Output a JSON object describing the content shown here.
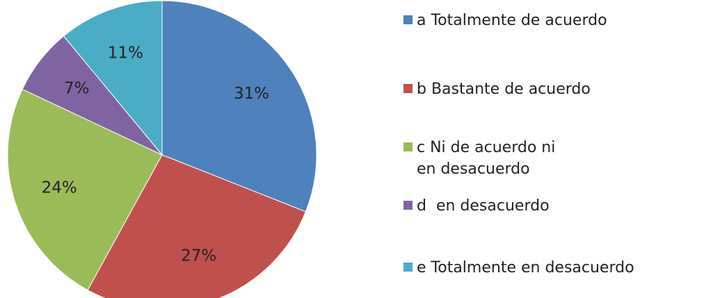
{
  "chart_data": {
    "type": "pie",
    "title": "",
    "slices": [
      {
        "label": "a Totalmente de acuerdo",
        "value": 31,
        "display": "31%",
        "color": "#4F81BD"
      },
      {
        "label": "b Bastante de acuerdo",
        "value": 27,
        "display": "27%",
        "color": "#C0504D"
      },
      {
        "label": "c Ni de acuerdo ni en desacuerdo",
        "value": 24,
        "display": "24%",
        "color": "#9BBB59"
      },
      {
        "label": "d  en desacuerdo",
        "value": 7,
        "display": "7%",
        "color": "#8064A2"
      },
      {
        "label": "e Totalmente en desacuerdo",
        "value": 11,
        "display": "11%",
        "color": "#4BACC6"
      }
    ],
    "legend_position": "right"
  }
}
